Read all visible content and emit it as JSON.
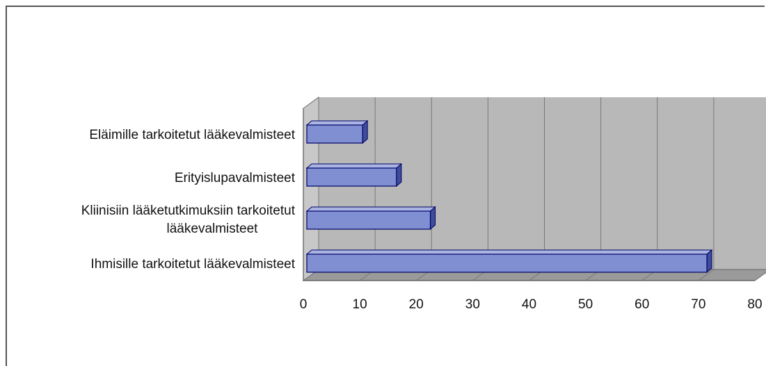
{
  "chart_data": {
    "type": "bar",
    "orientation": "horizontal",
    "three_d": true,
    "categories": [
      "Eläimille tarkoitetut lääkevalmisteet",
      "Erityislupavalmisteet",
      "Kliinisiin lääketutkimuksiin tarkoitetut lääkevalmisteet",
      "Ihmisille tarkoitetut lääkevalmisteet"
    ],
    "category_lines": [
      [
        "Eläimille tarkoitetut lääkevalmisteet"
      ],
      [
        "Erityislupavalmisteet"
      ],
      [
        "Kliinisiin lääketutkimuksiin tarkoitetut",
        "lääkevalmisteet"
      ],
      [
        "Ihmisille tarkoitetut lääkevalmisteet"
      ]
    ],
    "values": [
      10.5,
      16.5,
      22.5,
      71.5
    ],
    "xlim": [
      0,
      80
    ],
    "xticks": [
      "0",
      "10",
      "20",
      "30",
      "40",
      "50",
      "60",
      "70",
      "80"
    ],
    "grid": true,
    "legend": "none",
    "colors": {
      "bar_front": "#7f8fd1",
      "bar_top": "#a9b4e3",
      "bar_side": "#3d4d99",
      "bar_edge": "#000066",
      "wall": "#b8b8b8",
      "floor": "#9a9a9a",
      "grid": "#777777"
    }
  }
}
